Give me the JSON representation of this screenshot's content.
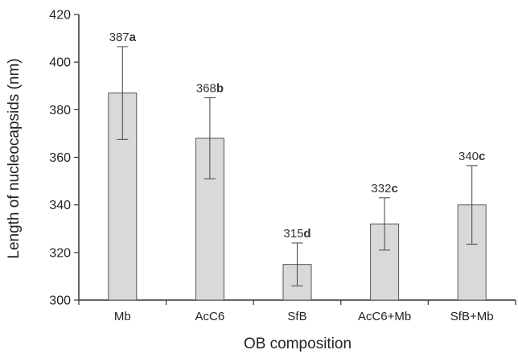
{
  "chart_data": {
    "type": "bar",
    "xlabel": "OB composition",
    "ylabel": "Length of nucleocapsids (nm)",
    "ylim": [
      300,
      420
    ],
    "yticks": [
      300,
      320,
      340,
      360,
      380,
      400,
      420
    ],
    "categories": [
      "Mb",
      "AcC6",
      "SfB",
      "AcC6+Mb",
      "SfB+Mb"
    ],
    "values": [
      387,
      368,
      315,
      332,
      340
    ],
    "error_low": [
      367.5,
      351,
      306,
      321,
      323.5
    ],
    "error_high": [
      406.5,
      385,
      324,
      343,
      356.5
    ],
    "labels": [
      {
        "value": "387",
        "letter": "a"
      },
      {
        "value": "368",
        "letter": "b"
      },
      {
        "value": "315",
        "letter": "d"
      },
      {
        "value": "332",
        "letter": "c"
      },
      {
        "value": "340",
        "letter": "c"
      }
    ],
    "bar_fill": "#d9d9d9",
    "bar_stroke": "#555555",
    "grid": false,
    "legend": "none"
  }
}
